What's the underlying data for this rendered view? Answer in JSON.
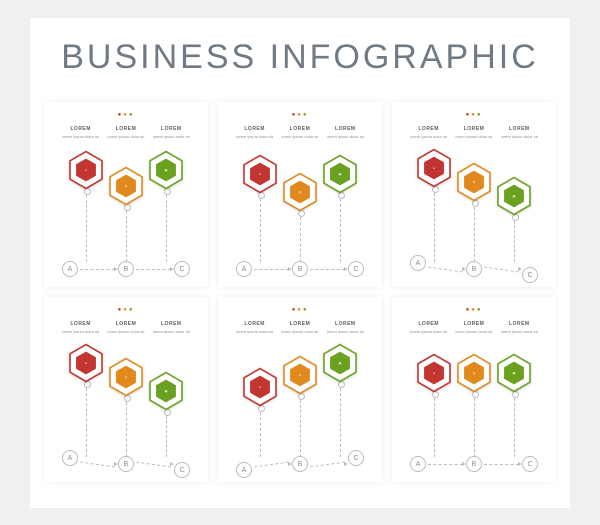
{
  "title": "BUSINESS INFOGRAPHIC",
  "background_color": "#eef0f1",
  "frame_color": "#ffffff",
  "title_color": "#6f7a85",
  "title_fontsize": 34,
  "grid": {
    "rows": 2,
    "cols": 3
  },
  "palette": {
    "red": "#c23531",
    "orange": "#e08a1e",
    "green": "#6aa121",
    "outline": "#b8bdc2",
    "text": "#8a8f94"
  },
  "column_header": "LOREM",
  "column_sub": "lorem ipsum dolor sit",
  "footer_letters": [
    "A",
    "B",
    "C"
  ],
  "icons": [
    "●",
    "◎",
    "▣"
  ],
  "panels": [
    {
      "id": 1,
      "colors": [
        "#c23531",
        "#e08a1e",
        "#6aa121"
      ],
      "hex_y": [
        48,
        64,
        48
      ],
      "footer_angled": false
    },
    {
      "id": 2,
      "colors": [
        "#c23531",
        "#e08a1e",
        "#6aa121"
      ],
      "hex_y": [
        52,
        70,
        52
      ],
      "footer_angled": false
    },
    {
      "id": 3,
      "colors": [
        "#c23531",
        "#e08a1e",
        "#6aa121"
      ],
      "hex_y": [
        46,
        60,
        74
      ],
      "footer_angled": true
    },
    {
      "id": 4,
      "colors": [
        "#c23531",
        "#e08a1e",
        "#6aa121"
      ],
      "hex_y": [
        46,
        60,
        74
      ],
      "footer_angled": true
    },
    {
      "id": 5,
      "colors": [
        "#c23531",
        "#e08a1e",
        "#6aa121"
      ],
      "hex_y": [
        70,
        58,
        46
      ],
      "footer_angled": true,
      "footer_reverse": true
    },
    {
      "id": 6,
      "colors": [
        "#c23531",
        "#e08a1e",
        "#6aa121"
      ],
      "hex_y": [
        56,
        56,
        56
      ],
      "footer_angled": false
    }
  ]
}
